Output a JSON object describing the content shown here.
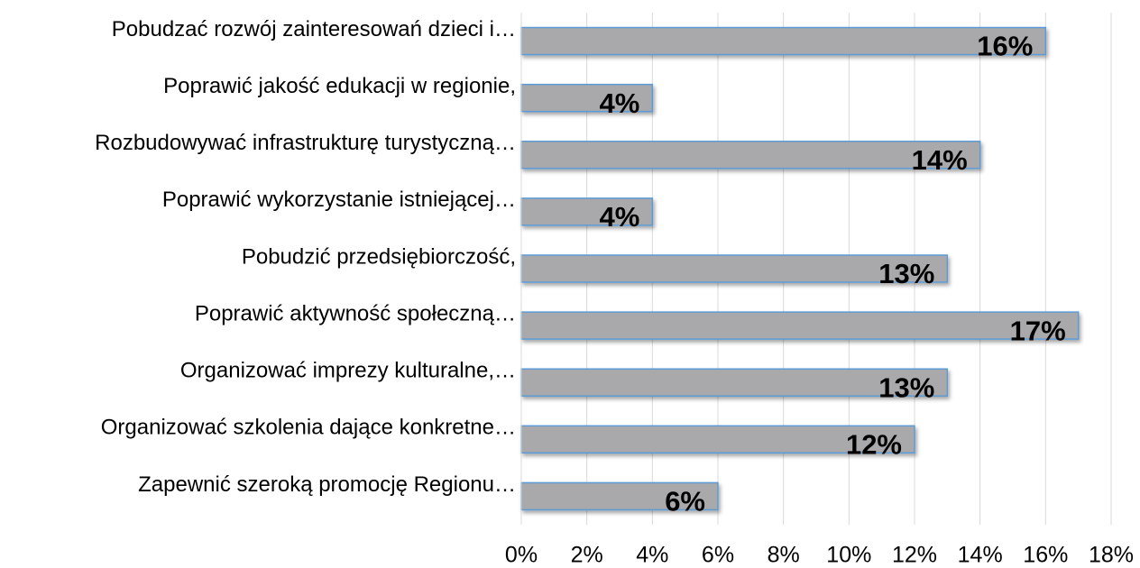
{
  "chart_data": {
    "type": "bar",
    "orientation": "horizontal",
    "categories": [
      "Pobudzać rozwój zainteresowań dzieci i…",
      "Poprawić jakość edukacji w regionie,",
      "Rozbudowywać infrastrukturę turystyczną…",
      "Poprawić wykorzystanie istniejącej…",
      "Pobudzić przedsiębiorczość,",
      "Poprawić aktywność społeczną…",
      "Organizować imprezy kulturalne,…",
      "Organizować szkolenia dające konkretne…",
      "Zapewnić szeroką promocję Regionu…"
    ],
    "values": [
      16,
      4,
      14,
      4,
      13,
      17,
      13,
      12,
      6
    ],
    "value_labels": [
      "16%",
      "4%",
      "14%",
      "4%",
      "13%",
      "17%",
      "13%",
      "12%",
      "6%"
    ],
    "color": "#a9a9ab",
    "edge_color": "#5b9bd5",
    "xlim": [
      0,
      18
    ],
    "xticks": [
      {
        "value": 0,
        "label": "0%"
      },
      {
        "value": 2,
        "label": "2%"
      },
      {
        "value": 4,
        "label": "4%"
      },
      {
        "value": 6,
        "label": "6%"
      },
      {
        "value": 8,
        "label": "8%"
      },
      {
        "value": 10,
        "label": "10%"
      },
      {
        "value": 12,
        "label": "12%"
      },
      {
        "value": 14,
        "label": "14%"
      },
      {
        "value": 16,
        "label": "16%"
      },
      {
        "value": 18,
        "label": "18%"
      }
    ],
    "grid": true
  }
}
